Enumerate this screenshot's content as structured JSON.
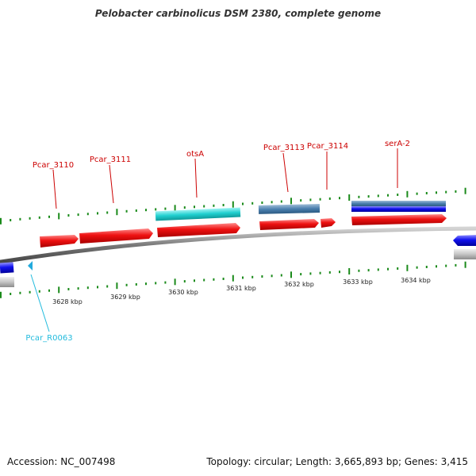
{
  "title": "Pelobacter carbinolicus DSM 2380, complete genome",
  "footer": {
    "accession": "Accession: NC_007498",
    "info": "Topology: circular; Length: 3,665,893 bp; Genes: 3,415"
  },
  "colors": {
    "cds_red": "#ee1111",
    "cds_blue": "#1111ee",
    "gene_blue": "#4a7fae",
    "gene_cyan": "#20d0d0",
    "pseudo_gray": "#c4c4c4",
    "backbone_gray": "#888888",
    "tick_green": "#1a8a1a",
    "label_red": "#cc0000",
    "label_cyan": "#22bbdd"
  },
  "scale": {
    "unit": "kbp",
    "labels": [
      "3628 kbp",
      "3629 kbp",
      "3630 kbp",
      "3631 kbp",
      "3632 kbp",
      "3633 kbp",
      "3634 kbp"
    ]
  },
  "gene_labels": [
    {
      "text": "Pcar_3110",
      "color": "#cc0000"
    },
    {
      "text": "Pcar_3111",
      "color": "#cc0000"
    },
    {
      "text": "otsA",
      "color": "#cc0000"
    },
    {
      "text": "Pcar_3113",
      "color": "#cc0000"
    },
    {
      "text": "Pcar_3114",
      "color": "#cc0000"
    },
    {
      "text": "serA-2",
      "color": "#cc0000"
    },
    {
      "text": "Pcar_R0063",
      "color": "#22bbdd"
    }
  ]
}
